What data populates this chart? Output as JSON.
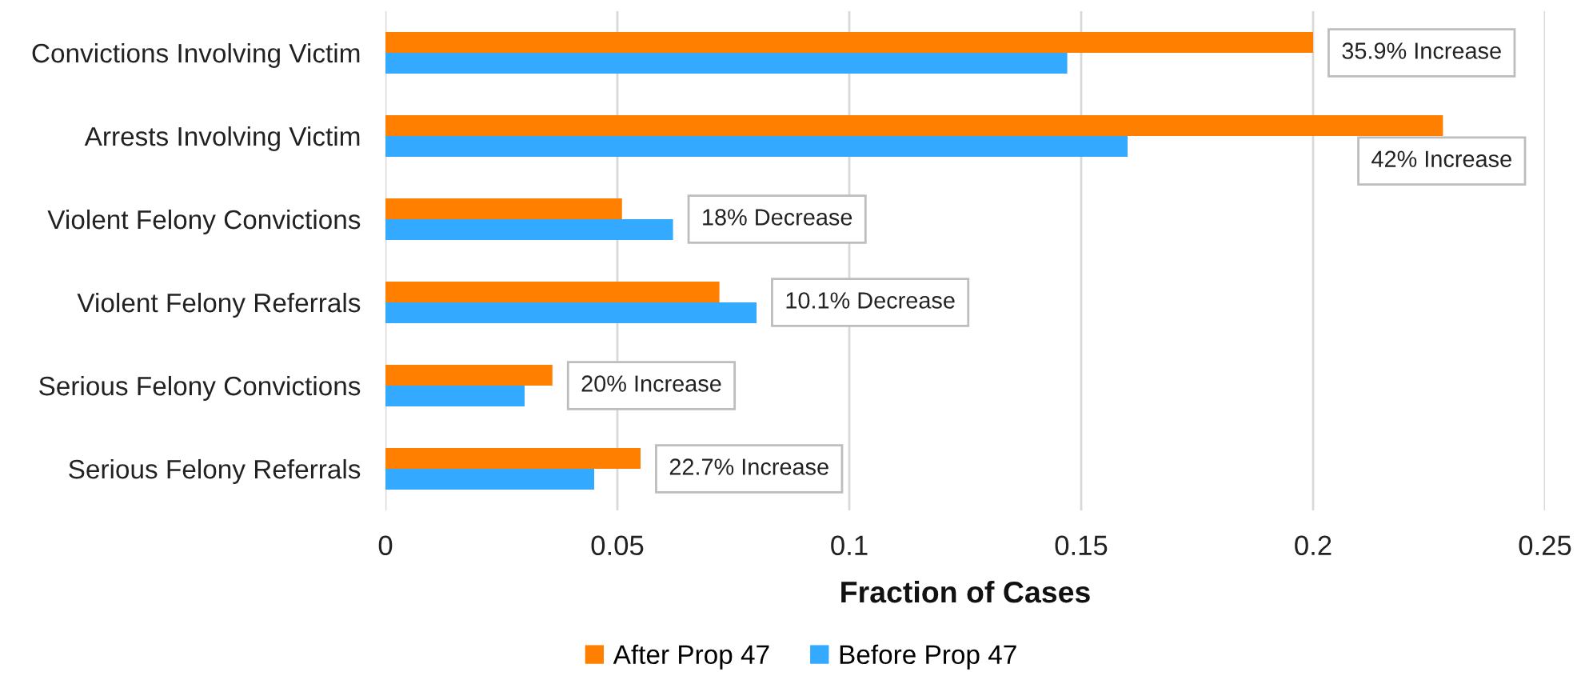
{
  "chart_data": {
    "type": "bar",
    "orientation": "horizontal",
    "categories": [
      "Convictions Involving Victim",
      "Arrests Involving Victim",
      "Violent Felony Convictions",
      "Violent Felony Referrals",
      "Serious Felony Convictions",
      "Serious Felony Referrals"
    ],
    "series": [
      {
        "name": "After Prop 47",
        "color": "#ff8000",
        "values": [
          0.2,
          0.228,
          0.051,
          0.072,
          0.036,
          0.055
        ]
      },
      {
        "name": "Before Prop 47",
        "color": "#33a9ff",
        "values": [
          0.147,
          0.16,
          0.062,
          0.08,
          0.03,
          0.045
        ]
      }
    ],
    "xlabel": "Fraction of Cases",
    "xlim": [
      0,
      0.25
    ],
    "xticks": [
      0,
      0.05,
      0.1,
      0.15,
      0.2,
      0.25
    ],
    "grid": "x",
    "legend": "bottom",
    "annotations": [
      {
        "text": "35.9% Increase",
        "x": 0.2,
        "y": "Convictions Involving Victim"
      },
      {
        "text": "42% Increase",
        "x": 0.228,
        "y": "Arrests Involving Victim"
      },
      {
        "text": "18% Decrease",
        "x": 0.062,
        "y": "Violent Felony Convictions"
      },
      {
        "text": "10.1% Decrease",
        "x": 0.08,
        "y": "Violent Felony Referrals"
      },
      {
        "text": "20% Increase",
        "x": 0.036,
        "y": "Serious Felony Convictions"
      },
      {
        "text": "22.7% Increase",
        "x": 0.055,
        "y": "Serious Felony Referrals"
      }
    ]
  }
}
